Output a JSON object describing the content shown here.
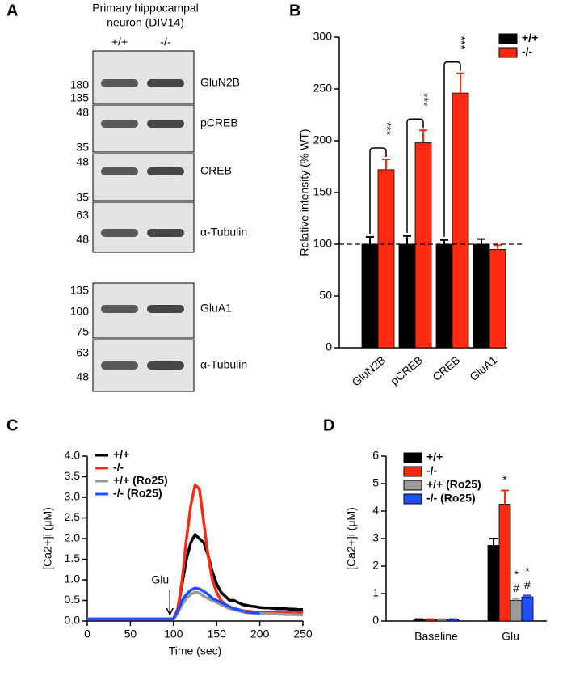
{
  "blot": {
    "panel": "A",
    "title": [
      "Primary hippocampal",
      "neuron (DIV14)"
    ],
    "lanes": [
      "+/+",
      "-/-"
    ],
    "blocks": [
      {
        "label": "GluN2B",
        "markers": [
          180,
          135
        ]
      },
      {
        "label": "pCREB",
        "markers": [
          48,
          35
        ]
      },
      {
        "label": "CREB",
        "markers": [
          48,
          35
        ]
      },
      {
        "label": "α-Tubulin",
        "markers": [
          63,
          48
        ]
      },
      {
        "label": "GluA1",
        "markers": [
          135,
          100,
          75
        ]
      },
      {
        "label": "α-Tubulin",
        "markers": [
          63,
          48
        ]
      }
    ]
  },
  "chart_data": [
    {
      "panel": "B",
      "type": "bar",
      "ylabel": "Relative intensity (% WT)",
      "categories": [
        "GluN2B",
        "pCREB",
        "CREB",
        "GluA1"
      ],
      "series": [
        {
          "name": "+/+",
          "color": "#000000",
          "values": [
            100,
            100,
            100,
            100
          ],
          "errors": [
            7,
            8,
            4,
            5
          ]
        },
        {
          "name": "-/-",
          "color": "#ff2a12",
          "values": [
            172,
            198,
            246,
            95
          ],
          "errors": [
            10,
            12,
            19,
            4
          ]
        }
      ],
      "ylim": [
        0,
        300
      ],
      "yticks": [
        0,
        50,
        100,
        150,
        200,
        250,
        300
      ],
      "reference_line": 100,
      "annotations": [
        {
          "text": "***",
          "category": 0
        },
        {
          "text": "***",
          "category": 1
        },
        {
          "text": "***",
          "category": 2
        }
      ],
      "legend": "top-right"
    },
    {
      "panel": "C",
      "type": "line",
      "xlabel": "Time (sec)",
      "ylabel": "[Ca2+]i (μM)",
      "x": [
        0,
        5,
        10,
        15,
        20,
        25,
        30,
        35,
        40,
        45,
        50,
        55,
        60,
        65,
        70,
        75,
        80,
        85,
        90,
        95,
        100,
        105,
        110,
        115,
        120,
        125,
        130,
        135,
        140,
        145,
        150,
        155,
        160,
        165,
        170,
        175,
        180,
        185,
        190,
        195,
        200,
        205,
        210,
        215,
        220,
        225,
        230,
        235,
        240,
        245,
        250
      ],
      "series": [
        {
          "name": "+/+",
          "color": "#000000",
          "values": [
            0.05,
            0.05,
            0.05,
            0.05,
            0.05,
            0.05,
            0.05,
            0.05,
            0.05,
            0.05,
            0.05,
            0.05,
            0.05,
            0.05,
            0.05,
            0.05,
            0.05,
            0.05,
            0.05,
            0.05,
            0.05,
            0.3,
            0.9,
            1.5,
            1.9,
            2.1,
            2.0,
            1.9,
            1.6,
            1.2,
            0.9,
            0.7,
            0.6,
            0.5,
            0.5,
            0.45,
            0.4,
            0.38,
            0.36,
            0.35,
            0.33,
            0.32,
            0.32,
            0.31,
            0.3,
            0.3,
            0.3,
            0.29,
            0.29,
            0.28,
            0.28
          ]
        },
        {
          "name": "-/-",
          "color": "#ff2a12",
          "values": [
            0.05,
            0.05,
            0.05,
            0.05,
            0.05,
            0.05,
            0.05,
            0.05,
            0.05,
            0.05,
            0.05,
            0.05,
            0.05,
            0.05,
            0.05,
            0.05,
            0.05,
            0.05,
            0.05,
            0.05,
            0.05,
            0.3,
            1.0,
            2.0,
            2.8,
            3.3,
            3.2,
            2.4,
            1.6,
            1.0,
            0.7,
            0.5,
            0.4,
            0.35,
            0.3,
            0.28,
            0.25,
            0.24,
            0.23,
            0.22,
            0.22,
            0.21,
            0.21,
            0.2,
            0.2,
            0.2,
            0.2,
            0.2,
            0.2,
            0.2,
            0.2
          ]
        },
        {
          "name": "+/+ (Ro25)",
          "color": "#999999",
          "values": [
            0.05,
            0.05,
            0.05,
            0.05,
            0.05,
            0.05,
            0.05,
            0.05,
            0.05,
            0.05,
            0.05,
            0.05,
            0.05,
            0.05,
            0.05,
            0.05,
            0.05,
            0.05,
            0.05,
            0.05,
            0.05,
            0.2,
            0.4,
            0.55,
            0.65,
            0.7,
            0.68,
            0.6,
            0.55,
            0.5,
            0.45,
            0.4,
            0.35,
            0.3,
            0.28,
            0.25,
            0.22,
            0.2,
            0.2,
            0.19,
            0.18,
            0.18,
            0.18,
            0.17,
            0.17,
            0.17,
            0.16,
            0.16,
            0.16,
            0.15,
            0.15
          ]
        },
        {
          "name": "-/- (Ro25)",
          "color": "#1f4fff",
          "values": [
            0.05,
            0.05,
            0.05,
            0.05,
            0.05,
            0.05,
            0.05,
            0.05,
            0.05,
            0.05,
            0.05,
            0.05,
            0.05,
            0.05,
            0.05,
            0.05,
            0.05,
            0.05,
            0.05,
            0.05,
            0.05,
            0.25,
            0.5,
            0.65,
            0.75,
            0.8,
            0.78,
            0.72,
            0.65,
            0.55,
            0.5,
            0.45,
            0.4,
            0.35,
            0.3,
            0.28,
            0.25,
            0.22,
            0.2,
            0.2,
            0.19,
            null,
            null,
            null,
            null,
            null,
            null,
            null,
            null,
            null,
            null
          ]
        }
      ],
      "xlim": [
        0,
        250
      ],
      "xticks": [
        0,
        50,
        100,
        150,
        200,
        250
      ],
      "ylim": [
        0,
        4
      ],
      "yticks": [
        {
          "value": 0,
          "label": "0.0"
        },
        0.5,
        {
          "value": 1,
          "label": "1.0"
        },
        1.5,
        {
          "value": 2,
          "label": "2.0"
        },
        2.5,
        {
          "value": 3,
          "label": "3.0"
        },
        3.5,
        {
          "value": 4,
          "label": "4.0"
        }
      ],
      "annotations": [
        {
          "text": "Glu",
          "x": 92
        }
      ],
      "legend": "top-left"
    },
    {
      "panel": "D",
      "type": "bar",
      "ylabel": "[Ca2+]i (μM)",
      "categories": [
        "Baseline",
        "Glu"
      ],
      "series": [
        {
          "name": "+/+",
          "color": "#000000",
          "values": [
            0.05,
            2.75
          ],
          "errors": [
            0.02,
            0.25
          ]
        },
        {
          "name": "-/-",
          "color": "#ff2a12",
          "values": [
            0.05,
            4.25
          ],
          "errors": [
            0.02,
            0.5
          ]
        },
        {
          "name": "+/+ (Ro25)",
          "color": "#999999",
          "values": [
            0.05,
            0.75
          ],
          "errors": [
            0.02,
            0.06
          ]
        },
        {
          "name": "-/- (Ro25)",
          "color": "#1f4fff",
          "values": [
            0.05,
            0.88
          ],
          "errors": [
            0.02,
            0.05
          ]
        }
      ],
      "ylim": [
        0,
        6
      ],
      "yticks": [
        0,
        1,
        2,
        3,
        4,
        5,
        6
      ],
      "annotations": [
        {
          "text": [
            "*"
          ],
          "series": 1,
          "category": 1
        },
        {
          "text": [
            "*",
            "#"
          ],
          "series": 2,
          "category": 1
        },
        {
          "text": [
            "*",
            "#"
          ],
          "series": 3,
          "category": 1
        }
      ],
      "legend": "top-left"
    }
  ]
}
